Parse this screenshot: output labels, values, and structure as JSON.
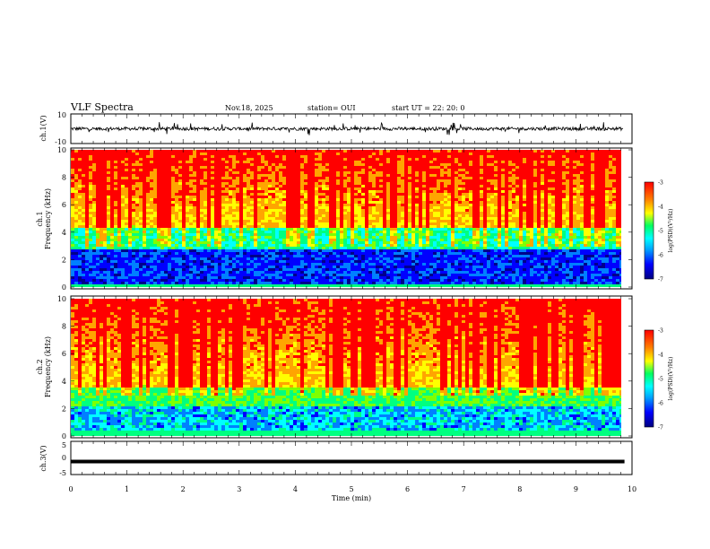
{
  "header": {
    "title": "VLF Spectra",
    "date": "Nov.18, 2025",
    "station": "station= OUI",
    "start": "start  UT  =   22: 20: 0"
  },
  "chart_data": [
    {
      "type": "line",
      "id": "ch1-waveform",
      "ylabel": "ch.1(V)",
      "ylim": [
        -10,
        10
      ],
      "yticks": [
        "10",
        "-10"
      ],
      "xlim": [
        0,
        10
      ],
      "series": [
        {
          "values_range": [
            -5,
            5
          ],
          "baseline": 0
        }
      ]
    },
    {
      "type": "heatmap",
      "id": "ch1-spectrogram",
      "ylabel": "ch.1 Frequency (kHz)",
      "ylim": [
        0,
        10
      ],
      "yticks": [
        "0",
        "2",
        "4",
        "6",
        "8",
        "10"
      ],
      "xlim": [
        0,
        9.85
      ],
      "colorbar": {
        "label": "log(PSD)(V²/Hz)",
        "range": [
          -7,
          -3
        ],
        "ticks": [
          "-3",
          "-4",
          "-5",
          "-6",
          "-7"
        ]
      }
    },
    {
      "type": "heatmap",
      "id": "ch2-spectrogram",
      "ylabel": "ch.2 Frequency (kHz)",
      "ylim": [
        0,
        10
      ],
      "yticks": [
        "0",
        "2",
        "4",
        "6",
        "8",
        "10"
      ],
      "xlim": [
        0,
        9.85
      ],
      "colorbar": {
        "label": "log(PSD)(V²/Hz)",
        "range": [
          -7,
          -3
        ],
        "ticks": [
          "-3",
          "-4",
          "-5",
          "-6",
          "-7"
        ]
      }
    },
    {
      "type": "line",
      "id": "ch3-signal",
      "ylabel": "ch.3(V)",
      "ylim": [
        -5,
        5
      ],
      "yticks": [
        "5",
        "0",
        "-5"
      ],
      "xlim": [
        0,
        10
      ],
      "series": [
        {
          "constant": -1.2
        }
      ]
    }
  ],
  "xaxis": {
    "label": "Time  (min)",
    "ticks": [
      "0",
      "1",
      "2",
      "3",
      "4",
      "5",
      "6",
      "7",
      "8",
      "9",
      "10"
    ]
  },
  "colors": {
    "scale": [
      "#00008b",
      "#0000ff",
      "#0080ff",
      "#00ffff",
      "#00ff80",
      "#7fff00",
      "#ffff00",
      "#ffa500",
      "#ff0000"
    ]
  }
}
